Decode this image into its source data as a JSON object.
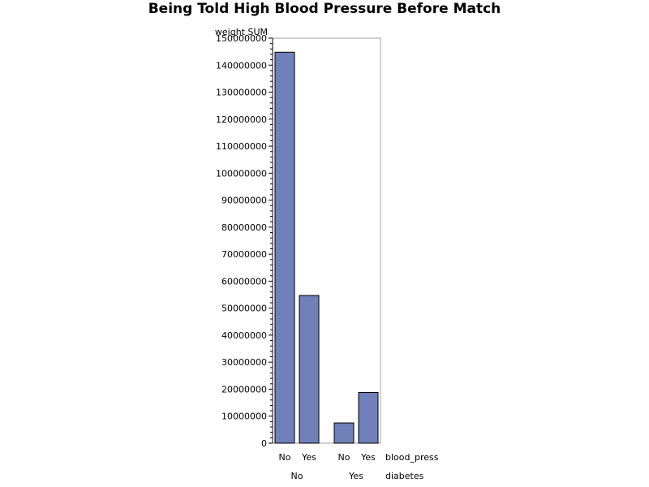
{
  "chart_data": {
    "type": "bar",
    "title": "Being Told High Blood Pressure Before Match",
    "ylabel": "weight SUM",
    "ylim": [
      0,
      150000000
    ],
    "yticks": [
      0,
      10000000,
      20000000,
      30000000,
      40000000,
      50000000,
      60000000,
      70000000,
      80000000,
      90000000,
      100000000,
      110000000,
      120000000,
      130000000,
      140000000,
      150000000
    ],
    "inner_group_label": "blood_press",
    "outer_group_label": "diabetes",
    "groups": [
      {
        "name": "No",
        "categories": [
          "No",
          "Yes"
        ],
        "values": [
          144800000,
          54700000
        ]
      },
      {
        "name": "Yes",
        "categories": [
          "No",
          "Yes"
        ],
        "values": [
          7500000,
          18800000
        ]
      }
    ],
    "bar_color": "#7080b8",
    "grid": false
  }
}
